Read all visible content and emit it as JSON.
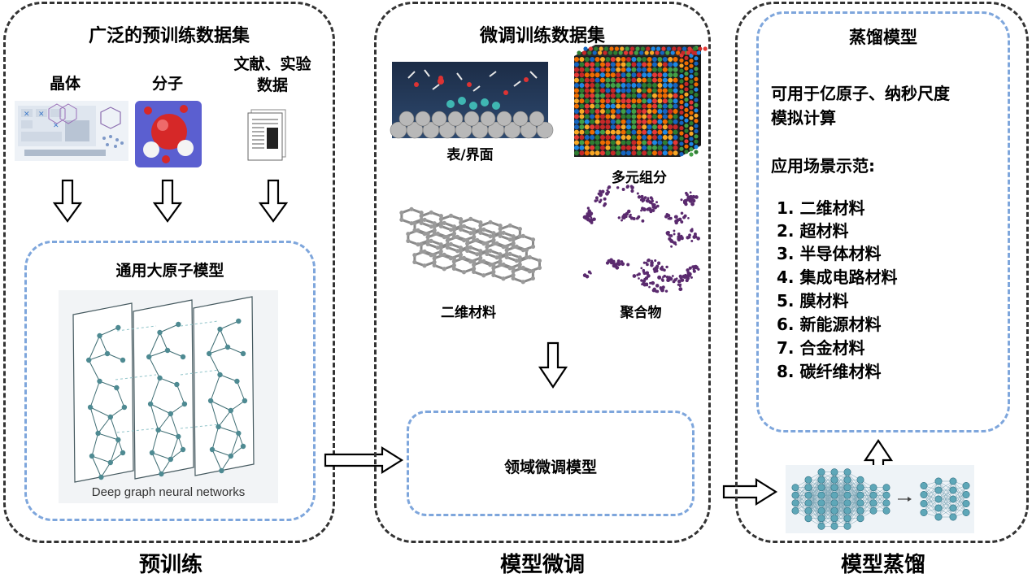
{
  "pretrain": {
    "dataset_title": "广泛的预训练数据集",
    "sources": [
      {
        "label": "晶体"
      },
      {
        "label": "分子"
      },
      {
        "label": "文献、实验\n数据"
      }
    ],
    "model_title": "通用大原子模型",
    "network_caption": "Deep graph neural networks",
    "stage_label": "预训练"
  },
  "finetune": {
    "dataset_title": "微调训练数据集",
    "items": [
      {
        "label": "表/界面"
      },
      {
        "label": "多元组分"
      },
      {
        "label": "二维材料"
      },
      {
        "label": "聚合物"
      }
    ],
    "model_title": "领域微调模型",
    "stage_label": "模型微调"
  },
  "distill": {
    "title": "蒸馏模型",
    "desc": "可用于亿原子、纳秒尺度\n模拟计算",
    "app_title": "应用场景示范:",
    "applications": [
      "1. 二维材料",
      "2. 超材料",
      "3. 半导体材料",
      "4. 集成电路材料",
      "5. 膜材料",
      "6. 新能源材料",
      "7. 合金材料",
      "8. 碳纤维材料"
    ],
    "stage_label": "模型蒸馏"
  },
  "colors": {
    "panel_border": "#333333",
    "inner_border": "#7ea6dc",
    "node": "#4e8a92",
    "molecule_red": "#d62828",
    "polymer": "#5a2a6e"
  }
}
